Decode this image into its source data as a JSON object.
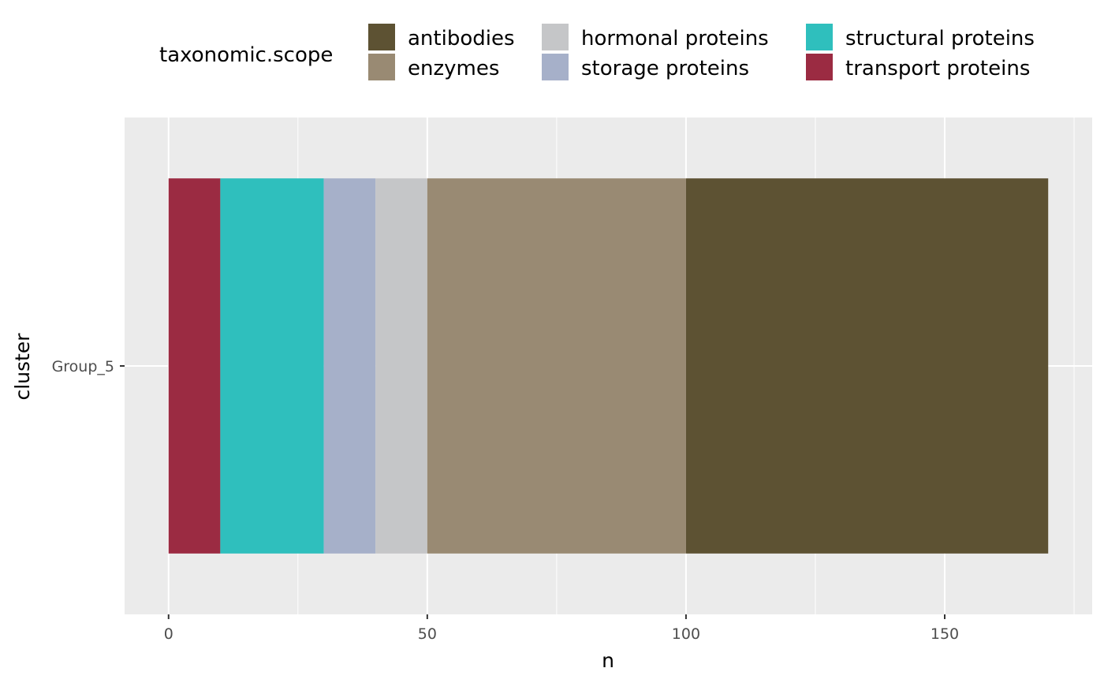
{
  "chart_data": {
    "type": "bar",
    "orientation": "horizontal",
    "stacked": true,
    "categories": [
      "Group_5"
    ],
    "xlabel": "n",
    "ylabel": "cluster",
    "xlim": [
      -8.5,
      178.5
    ],
    "x_ticks": [
      0,
      50,
      100,
      150
    ],
    "grid": true,
    "legend": {
      "title": "taxonomic.scope",
      "position": "top"
    },
    "series": [
      {
        "name": "transport proteins",
        "color": "#9b2b42",
        "values": [
          10
        ]
      },
      {
        "name": "structural proteins",
        "color": "#2fbfbd",
        "values": [
          20
        ]
      },
      {
        "name": "storage proteins",
        "color": "#a6b0c9",
        "values": [
          10
        ]
      },
      {
        "name": "hormonal proteins",
        "color": "#c5c6c8",
        "values": [
          10
        ]
      },
      {
        "name": "enzymes",
        "color": "#998a73",
        "values": [
          50
        ]
      },
      {
        "name": "antibodies",
        "color": "#5d5233",
        "values": [
          70
        ]
      }
    ],
    "legend_order": [
      "antibodies",
      "enzymes",
      "hormonal proteins",
      "storage proteins",
      "structural proteins",
      "transport proteins"
    ]
  },
  "colors": {
    "panel_background": "#ebebeb",
    "grid_major": "#ffffff",
    "tick_text": "#4d4d4d"
  }
}
